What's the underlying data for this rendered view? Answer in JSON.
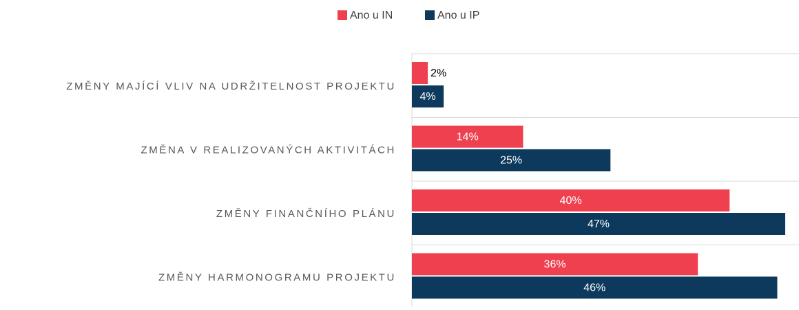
{
  "chart_data": {
    "type": "hbar",
    "categories": [
      "ZMĚNY MAJÍCÍ VLIV NA UDRŽITELNOST PROJEKTU",
      "ZMĚNA V REALIZOVANÝCH AKTIVITÁCH",
      "ZMĚNY FINANČNÍHO PLÁNU",
      "ZMĚNY HARMONOGRAMU PROJEKTU"
    ],
    "series": [
      {
        "name": "Ano u IN",
        "color": "#ef4050",
        "values": [
          2,
          14,
          40,
          36
        ],
        "value_labels": [
          "2%",
          "14%",
          "40%",
          "36%"
        ]
      },
      {
        "name": "Ano u IP",
        "color": "#0d3a5c",
        "values": [
          4,
          25,
          47,
          46
        ],
        "value_labels": [
          "4%",
          "25%",
          "47%",
          "46%"
        ]
      }
    ],
    "xlim": [
      0,
      47
    ],
    "legend": "top"
  }
}
